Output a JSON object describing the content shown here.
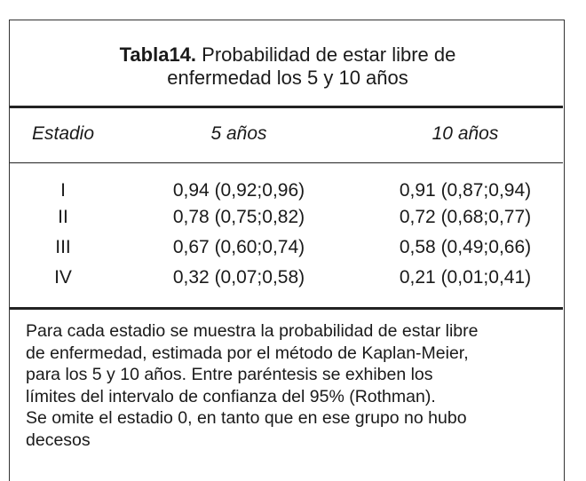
{
  "header": {
    "label": "Tabla14.",
    "title": "Probabilidad de estar libre de enfermedad los 5 y 10 años"
  },
  "table": {
    "columns": [
      "Estadio",
      "5 años",
      "10 años"
    ],
    "rows": [
      [
        "I",
        "0,94 (0,92;0,96)",
        "0,91 (0,87;0,94)"
      ],
      [
        "II",
        "0,78 (0,75;0,82)",
        "0,72 (0,68;0,77)"
      ],
      [
        "III",
        "0,67 (0,60;0,74)",
        "0,58 (0,49;0,66)"
      ],
      [
        "IV",
        "0,32 (0,07;0,58)",
        "0,21 (0,01;0,41)"
      ]
    ]
  },
  "note": {
    "lines": [
      "Para cada estadio se muestra la probabilidad de estar libre",
      "de enfermedad, estimada por el método de Kaplan-Meier,",
      "para los 5 y 10 años. Entre paréntesis se exhiben los",
      "límites del intervalo de confianza del 95% (Rothman).",
      "Se omite el estadio 0, en tanto que en ese grupo no hubo",
      "decesos"
    ]
  }
}
